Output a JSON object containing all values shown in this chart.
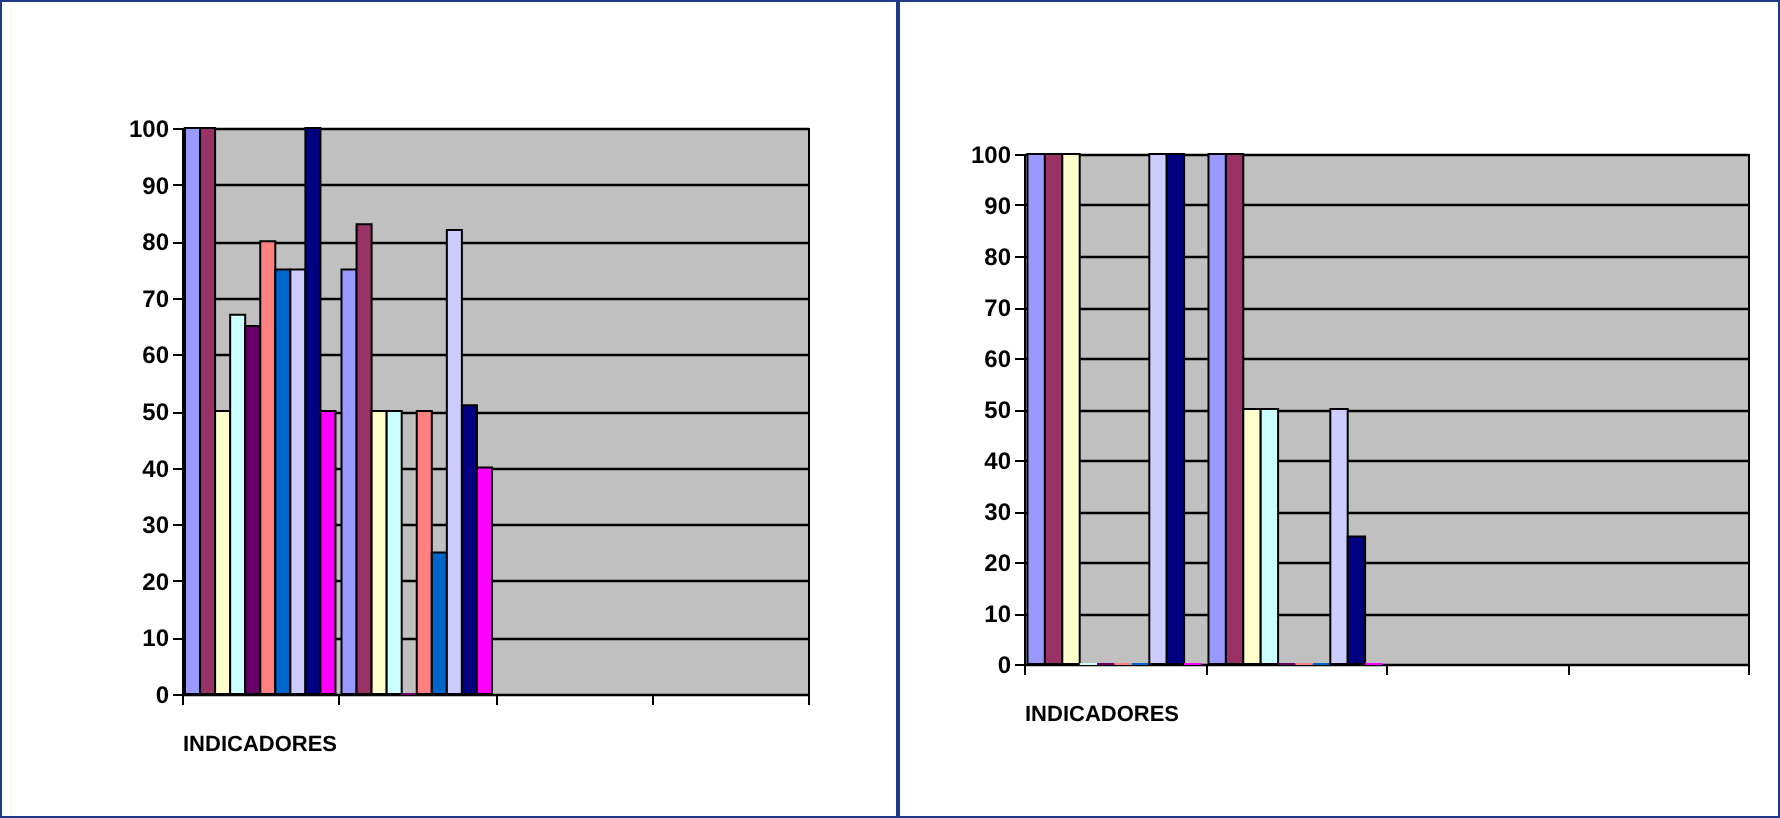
{
  "chart_data": [
    {
      "type": "bar",
      "xlabel": "INDICADORES",
      "categories": [
        null,
        null,
        null,
        null
      ],
      "ylim": [
        0,
        100
      ],
      "yticks": [
        0,
        10,
        20,
        30,
        40,
        50,
        60,
        70,
        80,
        90,
        100
      ],
      "grid": "y",
      "legend": false,
      "series": [
        {
          "color": "#9999ff",
          "values": [
            100,
            75,
            null,
            null
          ]
        },
        {
          "color": "#993366",
          "values": [
            100,
            83,
            null,
            null
          ]
        },
        {
          "color": "#ffffcc",
          "values": [
            50,
            50,
            null,
            null
          ]
        },
        {
          "color": "#ccffff",
          "values": [
            67,
            50,
            null,
            null
          ]
        },
        {
          "color": "#660066",
          "values": [
            65,
            0,
            null,
            null
          ]
        },
        {
          "color": "#ff8080",
          "values": [
            80,
            50,
            null,
            null
          ]
        },
        {
          "color": "#0066cc",
          "values": [
            75,
            25,
            null,
            null
          ]
        },
        {
          "color": "#ccccff",
          "values": [
            75,
            82,
            null,
            null
          ]
        },
        {
          "color": "#000080",
          "values": [
            100,
            51,
            null,
            null
          ]
        },
        {
          "color": "#ff00ff",
          "values": [
            50,
            40,
            null,
            null
          ]
        }
      ]
    },
    {
      "type": "bar",
      "xlabel": "INDICADORES",
      "categories": [
        null,
        null,
        null,
        null
      ],
      "ylim": [
        0,
        100
      ],
      "yticks": [
        0,
        10,
        20,
        30,
        40,
        50,
        60,
        70,
        80,
        90,
        100
      ],
      "grid": "y",
      "legend": false,
      "series": [
        {
          "color": "#9999ff",
          "values": [
            100,
            100,
            null,
            null
          ]
        },
        {
          "color": "#993366",
          "values": [
            100,
            100,
            null,
            null
          ]
        },
        {
          "color": "#ffffcc",
          "values": [
            100,
            50,
            null,
            null
          ]
        },
        {
          "color": "#ccffff",
          "values": [
            0,
            50,
            null,
            null
          ]
        },
        {
          "color": "#660066",
          "values": [
            0,
            0,
            null,
            null
          ]
        },
        {
          "color": "#ff8080",
          "values": [
            0,
            0,
            null,
            null
          ]
        },
        {
          "color": "#0066cc",
          "values": [
            0,
            0,
            null,
            null
          ]
        },
        {
          "color": "#ccccff",
          "values": [
            100,
            50,
            null,
            null
          ]
        },
        {
          "color": "#000080",
          "values": [
            100,
            25,
            null,
            null
          ]
        },
        {
          "color": "#ff00ff",
          "values": [
            0,
            0,
            null,
            null
          ]
        }
      ]
    }
  ]
}
